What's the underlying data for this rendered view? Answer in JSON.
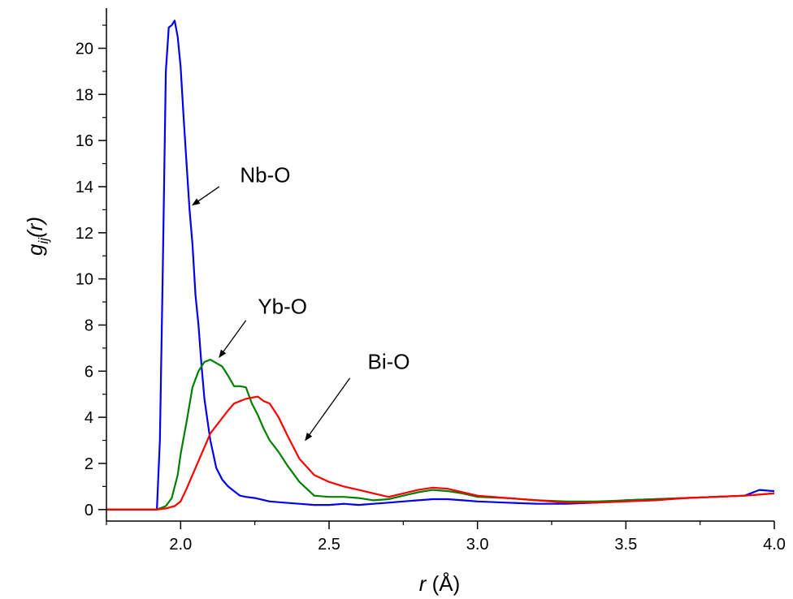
{
  "chart_data": {
    "type": "line",
    "xlabel": {
      "main": "r",
      "unit": " (Å)"
    },
    "ylabel": {
      "main": "g",
      "sub": "ij",
      "paren": "(r)"
    },
    "xlim": [
      1.75,
      4.0
    ],
    "ylim": [
      -0.5,
      21.6
    ],
    "x_ticks": [
      2.0,
      2.5,
      3.0,
      3.5,
      4.0
    ],
    "x_tick_labels": [
      "2.0",
      "2.5",
      "3.0",
      "3.5",
      "4.0"
    ],
    "y_ticks": [
      0,
      2,
      4,
      6,
      8,
      10,
      12,
      14,
      16,
      18,
      20
    ],
    "y_tick_labels": [
      "0",
      "2",
      "4",
      "6",
      "8",
      "10",
      "12",
      "14",
      "16",
      "18",
      "20"
    ],
    "grid": false,
    "legend": "none",
    "series": [
      {
        "name": "Nb-O",
        "color": "#0000ee",
        "x": [
          1.75,
          1.92,
          1.93,
          1.94,
          1.95,
          1.96,
          1.97,
          1.98,
          1.99,
          2.0,
          2.01,
          2.02,
          2.03,
          2.04,
          2.05,
          2.06,
          2.07,
          2.08,
          2.09,
          2.1,
          2.12,
          2.14,
          2.16,
          2.18,
          2.2,
          2.22,
          2.25,
          2.3,
          2.35,
          2.4,
          2.45,
          2.5,
          2.55,
          2.6,
          2.65,
          2.7,
          2.75,
          2.8,
          2.85,
          2.9,
          2.95,
          3.0,
          3.1,
          3.2,
          3.3,
          3.4,
          3.5,
          3.6,
          3.7,
          3.8,
          3.9,
          3.95,
          4.0
        ],
        "y": [
          0,
          0,
          3.0,
          10.5,
          19.0,
          20.9,
          21.0,
          21.2,
          20.5,
          19.2,
          17.0,
          15.0,
          13.0,
          11.5,
          9.3,
          8.0,
          6.3,
          4.8,
          3.9,
          3.0,
          1.8,
          1.3,
          1.0,
          0.8,
          0.6,
          0.55,
          0.5,
          0.35,
          0.3,
          0.25,
          0.2,
          0.2,
          0.25,
          0.2,
          0.25,
          0.3,
          0.35,
          0.4,
          0.45,
          0.45,
          0.4,
          0.35,
          0.3,
          0.25,
          0.25,
          0.3,
          0.4,
          0.45,
          0.5,
          0.55,
          0.6,
          0.85,
          0.8
        ]
      },
      {
        "name": "Yb-O",
        "color": "#008000",
        "x": [
          1.75,
          1.92,
          1.95,
          1.97,
          1.99,
          2.0,
          2.02,
          2.04,
          2.06,
          2.08,
          2.1,
          2.12,
          2.14,
          2.16,
          2.18,
          2.2,
          2.22,
          2.24,
          2.26,
          2.28,
          2.3,
          2.33,
          2.36,
          2.4,
          2.45,
          2.5,
          2.55,
          2.6,
          2.65,
          2.7,
          2.75,
          2.8,
          2.85,
          2.9,
          2.95,
          3.0,
          3.1,
          3.2,
          3.3,
          3.4,
          3.5,
          3.6,
          3.7,
          3.8,
          3.9,
          3.95,
          4.0
        ],
        "y": [
          0,
          0,
          0.15,
          0.5,
          1.5,
          2.4,
          3.8,
          5.3,
          6.0,
          6.4,
          6.5,
          6.35,
          6.2,
          5.8,
          5.35,
          5.35,
          5.3,
          4.6,
          4.1,
          3.5,
          3.0,
          2.5,
          1.9,
          1.2,
          0.6,
          0.55,
          0.55,
          0.5,
          0.4,
          0.45,
          0.6,
          0.75,
          0.85,
          0.8,
          0.7,
          0.55,
          0.5,
          0.4,
          0.35,
          0.35,
          0.4,
          0.45,
          0.5,
          0.55,
          0.6,
          0.65,
          0.7
        ]
      },
      {
        "name": "Bi-O",
        "color": "#ff0000",
        "x": [
          1.75,
          1.92,
          1.95,
          1.98,
          2.0,
          2.02,
          2.05,
          2.08,
          2.1,
          2.13,
          2.16,
          2.18,
          2.2,
          2.22,
          2.24,
          2.26,
          2.28,
          2.3,
          2.33,
          2.36,
          2.4,
          2.45,
          2.5,
          2.55,
          2.6,
          2.65,
          2.7,
          2.75,
          2.8,
          2.85,
          2.9,
          2.95,
          3.0,
          3.1,
          3.2,
          3.3,
          3.4,
          3.5,
          3.6,
          3.7,
          3.8,
          3.9,
          4.0
        ],
        "y": [
          0,
          0,
          0.05,
          0.15,
          0.35,
          0.9,
          1.8,
          2.7,
          3.3,
          3.8,
          4.3,
          4.6,
          4.7,
          4.8,
          4.85,
          4.9,
          4.7,
          4.6,
          4.0,
          3.2,
          2.2,
          1.5,
          1.2,
          1.0,
          0.85,
          0.7,
          0.55,
          0.7,
          0.85,
          0.95,
          0.9,
          0.75,
          0.6,
          0.5,
          0.4,
          0.3,
          0.3,
          0.35,
          0.4,
          0.5,
          0.55,
          0.6,
          0.7
        ]
      }
    ],
    "annotations": [
      {
        "text": "Nb-O",
        "text_x": 2.2,
        "text_y": 14.2,
        "arrow_from": [
          2.13,
          14.0
        ],
        "arrow_to": [
          2.04,
          13.2
        ]
      },
      {
        "text": "Yb-O",
        "text_x": 2.26,
        "text_y": 8.5,
        "arrow_from": [
          2.22,
          8.2
        ],
        "arrow_to": [
          2.13,
          6.6
        ]
      },
      {
        "text": "Bi-O",
        "text_x": 2.63,
        "text_y": 6.1,
        "arrow_from": [
          2.57,
          5.7
        ],
        "arrow_to": [
          2.42,
          3.0
        ]
      }
    ]
  }
}
